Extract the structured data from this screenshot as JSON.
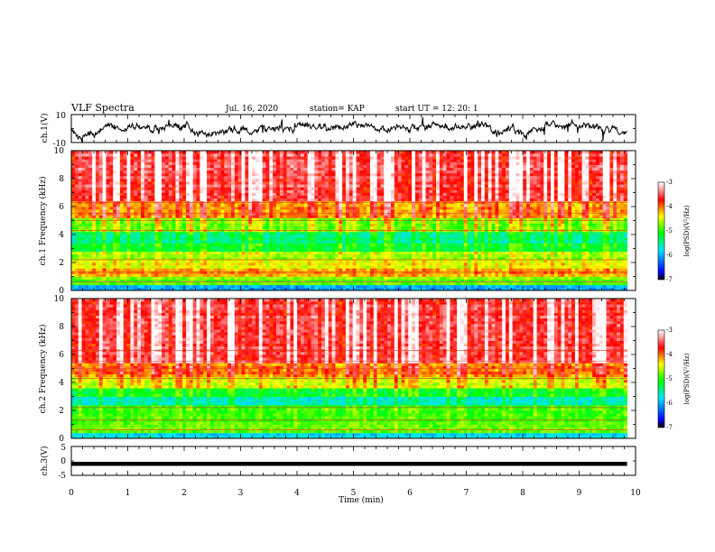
{
  "header": {
    "title": "VLF Spectra",
    "date": "Jul. 16, 2020",
    "station": "station= KAP",
    "start": "start UT = 12: 20: 1"
  },
  "chart_data": [
    {
      "type": "line",
      "panel": "ch1-waveform",
      "ylabel": "ch.1(V)",
      "yticklabels": [
        "10",
        "-10"
      ],
      "ylim": [
        -10,
        10
      ],
      "xlim": [
        0,
        10
      ],
      "description_values": "noisy waveform envelope fluctuating roughly between -8 and +8 V over 0-9.8 min",
      "series_color": "#000000"
    },
    {
      "type": "heatmap",
      "panel": "ch1-spectrogram",
      "ylabel": "ch.1\nFrequency (kHz)",
      "ylim": [
        0,
        10
      ],
      "yticklabels": [
        "0",
        "2",
        "4",
        "6",
        "8",
        "10"
      ],
      "xlim": [
        0,
        10
      ],
      "data_xmax": 9.85,
      "bands": [
        {
          "from": 0,
          "to": 0.4,
          "level": 0.25
        },
        {
          "from": 0.4,
          "to": 1.0,
          "level": 0.55
        },
        {
          "from": 1.0,
          "to": 1.6,
          "level": 0.72
        },
        {
          "from": 1.6,
          "to": 2.3,
          "level": 0.62
        },
        {
          "from": 2.3,
          "to": 2.8,
          "level": 0.58
        },
        {
          "from": 2.8,
          "to": 3.5,
          "level": 0.45
        },
        {
          "from": 3.5,
          "to": 4.3,
          "level": 0.38
        },
        {
          "from": 4.3,
          "to": 5.2,
          "level": 0.55
        },
        {
          "from": 5.2,
          "to": 6.5,
          "level": 0.72
        },
        {
          "from": 6.5,
          "to": 10,
          "level": 0.86
        }
      ],
      "colorbar": {
        "label": "log(PSD)(V²/Hz)",
        "min": -7,
        "max": -3,
        "ticks": [
          "-3",
          "-4",
          "-5",
          "-6",
          "-7"
        ]
      }
    },
    {
      "type": "heatmap",
      "panel": "ch2-spectrogram",
      "ylabel": "ch.2\nFrequency (kHz)",
      "ylim": [
        0,
        10
      ],
      "yticklabels": [
        "0",
        "2",
        "4",
        "6",
        "8",
        "10"
      ],
      "xlim": [
        0,
        10
      ],
      "data_xmax": 9.85,
      "bands": [
        {
          "from": 0,
          "to": 0.4,
          "level": 0.3
        },
        {
          "from": 0.4,
          "to": 1.0,
          "level": 0.55
        },
        {
          "from": 1.0,
          "to": 1.8,
          "level": 0.52
        },
        {
          "from": 1.8,
          "to": 2.4,
          "level": 0.5
        },
        {
          "from": 2.4,
          "to": 3.0,
          "level": 0.36
        },
        {
          "from": 3.0,
          "to": 3.6,
          "level": 0.45
        },
        {
          "from": 3.6,
          "to": 4.4,
          "level": 0.62
        },
        {
          "from": 4.4,
          "to": 5.4,
          "level": 0.74
        },
        {
          "from": 5.4,
          "to": 10,
          "level": 0.86
        }
      ],
      "colorbar": {
        "label": "log(PSD)(V²/Hz)",
        "min": -7,
        "max": -3,
        "ticks": [
          "-3",
          "-4",
          "-5",
          "-6",
          "-7"
        ]
      }
    },
    {
      "type": "line",
      "panel": "ch3-waveform",
      "ylabel": "ch.3(V)",
      "yticklabels": [
        "5",
        "0",
        "-5"
      ],
      "ylim": [
        -5,
        5
      ],
      "xlim": [
        0,
        10
      ],
      "level": -1,
      "thickness_v": 0.8,
      "data_xmax": 9.85,
      "xlabel": "Time (min)",
      "xticklabels": [
        "0",
        "1",
        "2",
        "3",
        "4",
        "5",
        "6",
        "7",
        "8",
        "9",
        "10"
      ]
    }
  ]
}
